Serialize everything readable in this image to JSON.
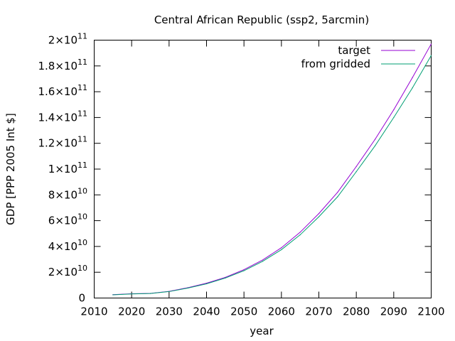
{
  "chart_data": {
    "type": "line",
    "title": "Central African Republic (ssp2, 5arcmin)",
    "xlabel": "year",
    "ylabel": "GDP [PPP 2005 Int $]",
    "xlim": [
      2010,
      2100
    ],
    "ylim": [
      0,
      200000000000
    ],
    "x_ticks": [
      2010,
      2020,
      2030,
      2040,
      2050,
      2060,
      2070,
      2080,
      2090,
      2100
    ],
    "y_ticks": [
      {
        "value": 0,
        "mantissa": "0",
        "exp": ""
      },
      {
        "value": 20000000000,
        "mantissa": "2×10",
        "exp": "10"
      },
      {
        "value": 40000000000,
        "mantissa": "4×10",
        "exp": "10"
      },
      {
        "value": 60000000000,
        "mantissa": "6×10",
        "exp": "10"
      },
      {
        "value": 80000000000,
        "mantissa": "8×10",
        "exp": "10"
      },
      {
        "value": 100000000000,
        "mantissa": "1×10",
        "exp": "11"
      },
      {
        "value": 120000000000,
        "mantissa": "1.2×10",
        "exp": "11"
      },
      {
        "value": 140000000000,
        "mantissa": "1.4×10",
        "exp": "11"
      },
      {
        "value": 160000000000,
        "mantissa": "1.6×10",
        "exp": "11"
      },
      {
        "value": 180000000000,
        "mantissa": "1.8×10",
        "exp": "11"
      },
      {
        "value": 200000000000,
        "mantissa": "2×10",
        "exp": "11"
      }
    ],
    "grid": false,
    "legend_position": "top-right",
    "x": [
      2015,
      2020,
      2025,
      2030,
      2035,
      2040,
      2045,
      2050,
      2055,
      2060,
      2065,
      2070,
      2075,
      2080,
      2085,
      2090,
      2095,
      2100
    ],
    "series": [
      {
        "name": "target",
        "color": "#9400d3",
        "values": [
          2600000000.0,
          3300000000.0,
          3600000000.0,
          5200000000.0,
          8000000000.0,
          11500000000.0,
          16000000000.0,
          22000000000.0,
          29500000000.0,
          39000000000.0,
          51000000000.0,
          65500000000.0,
          82000000000.0,
          102000000000.0,
          123000000000.0,
          146000000000.0,
          171000000000.0,
          197000000000.0
        ]
      },
      {
        "name": "from gridded",
        "color": "#009e73",
        "values": [
          2500000000.0,
          3200000000.0,
          3500000000.0,
          5000000000.0,
          7700000000.0,
          11000000000.0,
          15500000000.0,
          21200000000.0,
          28500000000.0,
          37500000000.0,
          49000000000.0,
          63000000000.0,
          78500000000.0,
          98000000000.0,
          118000000000.0,
          140000000000.0,
          163000000000.0,
          188000000000.0
        ]
      }
    ]
  }
}
